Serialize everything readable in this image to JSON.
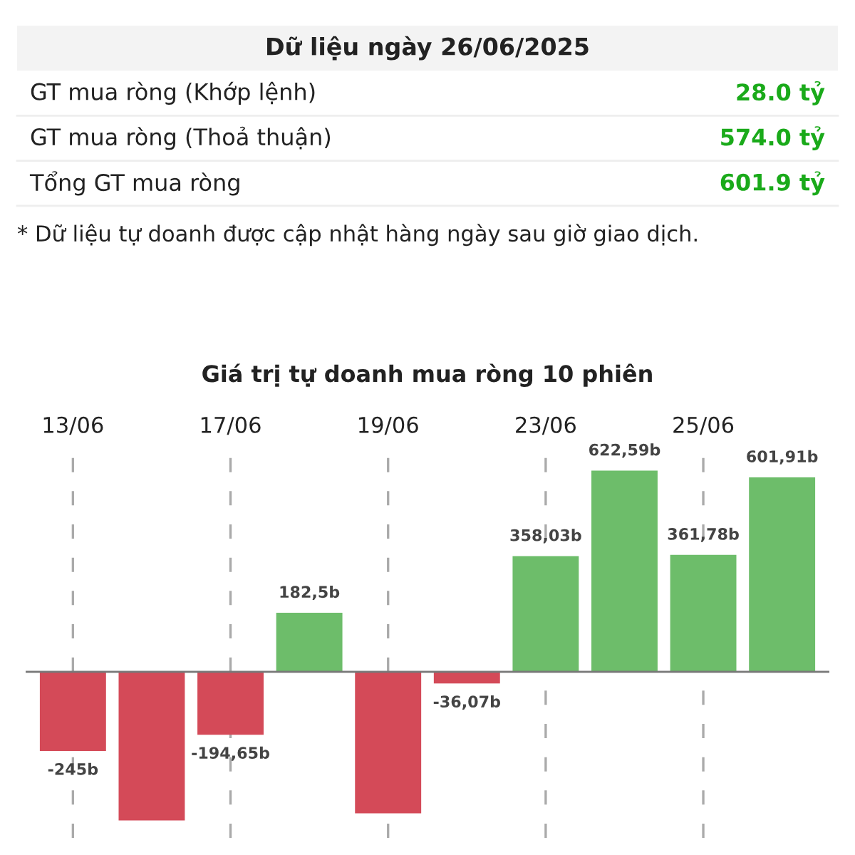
{
  "chart_data": [
    {
      "type": "other",
      "title": "Dữ liệu ngày 26/06/2025",
      "categories": [
        "GT mua ròng (Khớp lệnh)",
        "GT mua ròng (Thoả thuận)",
        "Tổng GT mua ròng"
      ],
      "value_labels": [
        "28.0 tỷ",
        "574.0 tỷ",
        "601.9 tỷ"
      ],
      "color": "#1aaa1a",
      "annotations": [
        "* Dữ liệu tự doanh được cập nhật hàng ngày sau giờ giao dịch."
      ]
    },
    {
      "type": "bar",
      "title": "Giá trị tự doanh mua ròng 10 phiên",
      "categories": [
        "13/06",
        null,
        "17/06",
        null,
        "19/06",
        null,
        "23/06",
        null,
        "25/06",
        null
      ],
      "values": [
        -245,
        -460,
        -194.65,
        182.5,
        -438,
        -36.07,
        358.03,
        622.59,
        361.78,
        601.91
      ],
      "colors": [
        "#d44a58",
        "#d44a58",
        "#d44a58",
        "#6dbd6a",
        "#d44a58",
        "#d44a58",
        "#6dbd6a",
        "#6dbd6a",
        "#6dbd6a",
        "#6dbd6a"
      ],
      "value_labels": [
        "-245b",
        null,
        "-194,65b",
        "182,5b",
        null,
        "-36,07b",
        "358,03b",
        "622,59b",
        "361,78b",
        "601,91b"
      ],
      "grid": "x"
    }
  ]
}
